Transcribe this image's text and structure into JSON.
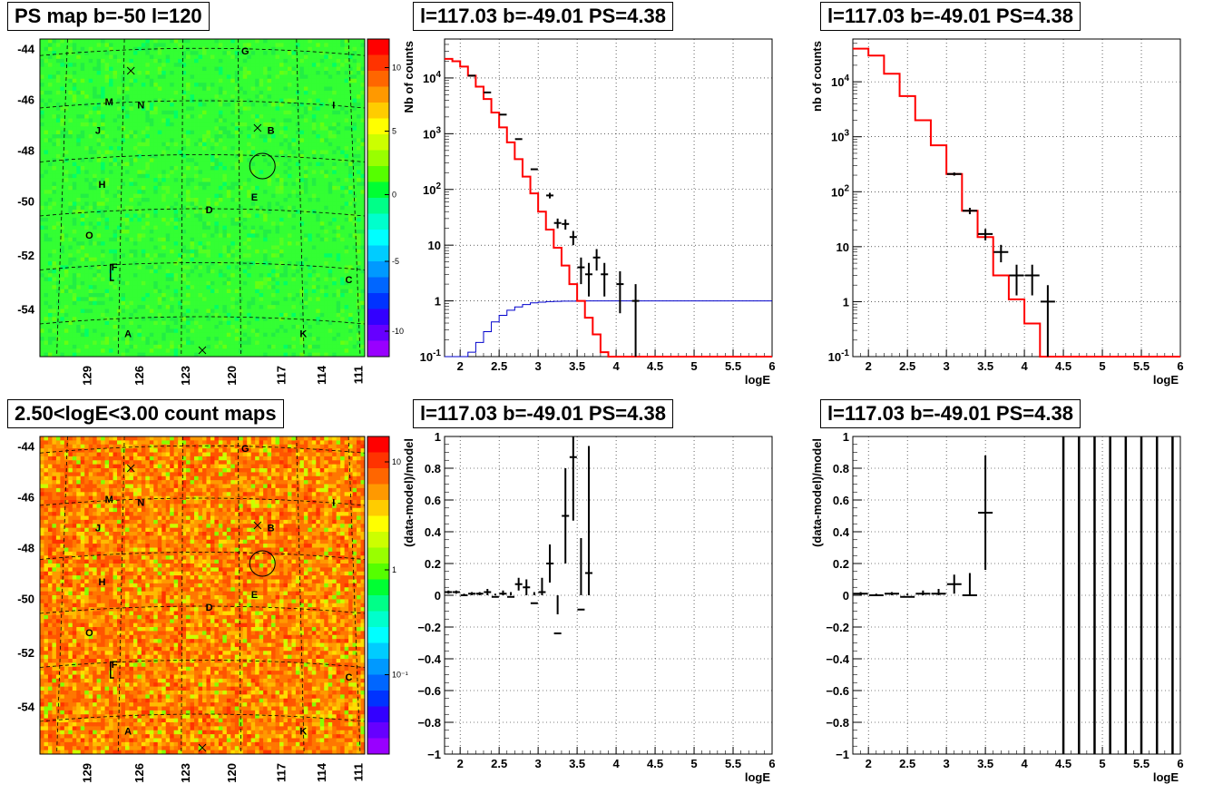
{
  "titles": {
    "map_ps": "PS map b=-50 l=120",
    "spec_top": "l=117.03 b=-49.01 PS=4.38",
    "spec_top_right": "l=117.03 b=-49.01 PS=4.38",
    "map_counts": "2.50<logE<3.00 count maps",
    "resid_left": "l=117.03 b=-49.01 PS=4.38",
    "resid_right": "l=117.03 b=-49.01 PS=4.38"
  },
  "chart_data": [
    {
      "type": "heatmap",
      "panel": "ps_map",
      "lat_ticks": [
        "-44",
        "-46",
        "-48",
        "-50",
        "-52",
        "-54"
      ],
      "lon_ticks": [
        "129",
        "126",
        "123",
        "120",
        "117",
        "114",
        "111"
      ],
      "colorbar_ticks": [
        "10",
        "5",
        "0",
        "-5",
        "-10"
      ],
      "zrange": [
        -12,
        12
      ],
      "source_labels": [
        "G",
        "M",
        "N",
        "I",
        "J",
        "B",
        "H",
        "E",
        "D",
        "O",
        "F",
        "C",
        "A",
        "K"
      ],
      "circle_source": "B/E"
    },
    {
      "type": "line",
      "panel": "spectrum_left",
      "xlabel": "logE",
      "ylabel": "Nb of counts",
      "xlim": [
        1.8,
        6.0
      ],
      "ylim": [
        0.1,
        50000
      ],
      "log_y": true,
      "xticks": [
        "2",
        "2.5",
        "3",
        "3.5",
        "4",
        "4.5",
        "5",
        "5.5",
        "6"
      ],
      "yticks": [
        "10^-1",
        "1",
        "10",
        "10^2",
        "10^3",
        "10^4"
      ],
      "model_step": {
        "edges": [
          1.8,
          1.9,
          2.0,
          2.1,
          2.2,
          2.3,
          2.4,
          2.5,
          2.6,
          2.7,
          2.8,
          2.9,
          3.0,
          3.1,
          3.2,
          3.3,
          3.4,
          3.5,
          3.6,
          3.7,
          3.8,
          3.9,
          4.0,
          4.1,
          4.2,
          6.0
        ],
        "values": [
          22000,
          20000,
          16000,
          11000,
          7000,
          4200,
          2400,
          1300,
          700,
          350,
          170,
          85,
          40,
          19,
          9,
          4.3,
          2.0,
          1.0,
          0.5,
          0.25,
          0.12,
          0.1,
          0.1,
          0.1,
          0.1
        ]
      },
      "efficiency_step": {
        "edges": [
          1.8,
          2.0,
          2.1,
          2.2,
          2.3,
          2.4,
          2.5,
          2.6,
          2.7,
          2.8,
          2.9,
          3.0,
          3.1,
          3.2,
          3.3,
          3.5,
          6.0
        ],
        "values": [
          0.08,
          0.1,
          0.12,
          0.18,
          0.28,
          0.42,
          0.55,
          0.68,
          0.78,
          0.86,
          0.92,
          0.95,
          0.97,
          0.98,
          0.99,
          1.0
        ]
      },
      "data_points": [
        {
          "x": 2.15,
          "y": 11000,
          "err": 0
        },
        {
          "x": 2.35,
          "y": 5500,
          "err": 0
        },
        {
          "x": 2.55,
          "y": 2200,
          "err": 0
        },
        {
          "x": 2.75,
          "y": 800,
          "err": 0
        },
        {
          "x": 2.95,
          "y": 230,
          "err": 0
        },
        {
          "x": 3.15,
          "y": 78,
          "err": 9
        },
        {
          "x": 3.25,
          "y": 25,
          "err": 5
        },
        {
          "x": 3.35,
          "y": 24,
          "err": 5
        },
        {
          "x": 3.45,
          "y": 14,
          "err": 4
        },
        {
          "x": 3.55,
          "y": 4,
          "err": 2
        },
        {
          "x": 3.65,
          "y": 3,
          "err": 1.8
        },
        {
          "x": 3.75,
          "y": 6,
          "err": 2.5
        },
        {
          "x": 3.85,
          "y": 3,
          "err": 1.8
        },
        {
          "x": 4.05,
          "y": 2,
          "err": 1.4
        },
        {
          "x": 4.25,
          "y": 1,
          "err": 1
        }
      ]
    },
    {
      "type": "line",
      "panel": "spectrum_right",
      "xlabel": "logE",
      "ylabel": "nb of counts",
      "xlim": [
        1.8,
        6.0
      ],
      "ylim": [
        0.1,
        60000
      ],
      "log_y": true,
      "xticks": [
        "2",
        "2.5",
        "3",
        "3.5",
        "4",
        "4.5",
        "5",
        "5.5",
        "6"
      ],
      "yticks": [
        "10^-1",
        "1",
        "10",
        "10^2",
        "10^3",
        "10^4"
      ],
      "model_step": {
        "edges": [
          1.8,
          2.0,
          2.2,
          2.4,
          2.6,
          2.8,
          3.0,
          3.2,
          3.4,
          3.6,
          3.8,
          4.0,
          4.2,
          6.0
        ],
        "values": [
          40000,
          30000,
          14000,
          5500,
          2000,
          700,
          210,
          45,
          15,
          3,
          1.1,
          0.4,
          0.1
        ]
      },
      "data_points": [
        {
          "x": 3.1,
          "y": 210,
          "err": 14
        },
        {
          "x": 3.3,
          "y": 45,
          "err": 6
        },
        {
          "x": 3.5,
          "y": 17,
          "err": 4
        },
        {
          "x": 3.7,
          "y": 8,
          "err": 2.8
        },
        {
          "x": 3.9,
          "y": 3,
          "err": 1.7
        },
        {
          "x": 4.1,
          "y": 3,
          "err": 1.7
        },
        {
          "x": 4.3,
          "y": 1,
          "err": 1
        }
      ]
    },
    {
      "type": "scatter",
      "panel": "residual_left",
      "xlabel": "logE",
      "ylabel": "(data-model)/model",
      "xlim": [
        1.8,
        6.0
      ],
      "ylim": [
        -1,
        1
      ],
      "xticks": [
        "2",
        "2.5",
        "3",
        "3.5",
        "4",
        "4.5",
        "5",
        "5.5",
        "6"
      ],
      "yticks": [
        "-1",
        "-0.8",
        "-0.6",
        "-0.4",
        "-0.2",
        "0",
        "0.2",
        "0.4",
        "0.6",
        "0.8",
        "1"
      ],
      "data_points": [
        {
          "x": 1.85,
          "y": 0.02,
          "err": 0.01
        },
        {
          "x": 1.95,
          "y": 0.02,
          "err": 0.01
        },
        {
          "x": 2.05,
          "y": 0.0,
          "err": 0.01
        },
        {
          "x": 2.15,
          "y": 0.01,
          "err": 0.01
        },
        {
          "x": 2.25,
          "y": 0.01,
          "err": 0.01
        },
        {
          "x": 2.35,
          "y": 0.02,
          "err": 0.02
        },
        {
          "x": 2.45,
          "y": -0.01,
          "err": 0.02
        },
        {
          "x": 2.55,
          "y": 0.01,
          "err": 0.02
        },
        {
          "x": 2.65,
          "y": -0.01,
          "err": 0.03
        },
        {
          "x": 2.75,
          "y": 0.07,
          "err": 0.04
        },
        {
          "x": 2.85,
          "y": 0.05,
          "err": 0.05
        },
        {
          "x": 2.95,
          "y": -0.05,
          "err": 0.07
        },
        {
          "x": 3.05,
          "y": 0.02,
          "err": 0.09
        },
        {
          "x": 3.15,
          "y": 0.2,
          "err": 0.12
        },
        {
          "x": 3.25,
          "y": -0.24,
          "err": 0.12
        },
        {
          "x": 3.35,
          "y": 0.5,
          "err": 0.3
        },
        {
          "x": 3.45,
          "y": 0.87,
          "err": 0.4
        },
        {
          "x": 3.55,
          "y": -0.09,
          "err": 0.45
        },
        {
          "x": 3.65,
          "y": 0.14,
          "err": 0.8
        }
      ]
    },
    {
      "type": "scatter",
      "panel": "residual_right",
      "xlabel": "logE",
      "ylabel": "(data-model)/model",
      "xlim": [
        1.8,
        6.0
      ],
      "ylim": [
        -1,
        1
      ],
      "xticks": [
        "2",
        "2.5",
        "3",
        "3.5",
        "4",
        "4.5",
        "5",
        "5.5",
        "6"
      ],
      "yticks": [
        "-1",
        "-0.8",
        "-0.6",
        "-0.4",
        "-0.2",
        "0",
        "0.2",
        "0.4",
        "0.6",
        "0.8",
        "1"
      ],
      "data_points": [
        {
          "x": 1.9,
          "y": 0.01,
          "err": 0.01
        },
        {
          "x": 2.1,
          "y": 0.0,
          "err": 0.01
        },
        {
          "x": 2.3,
          "y": 0.01,
          "err": 0.01
        },
        {
          "x": 2.5,
          "y": -0.01,
          "err": 0.02
        },
        {
          "x": 2.7,
          "y": 0.01,
          "err": 0.02
        },
        {
          "x": 2.9,
          "y": 0.01,
          "err": 0.03
        },
        {
          "x": 3.1,
          "y": 0.07,
          "err": 0.06
        },
        {
          "x": 3.3,
          "y": 0.0,
          "err": 0.14
        },
        {
          "x": 3.5,
          "y": 0.52,
          "err": 0.36
        }
      ],
      "full_range_bars_x": [
        4.5,
        4.7,
        4.9,
        5.1,
        5.3,
        5.5,
        5.7,
        5.9
      ]
    }
  ],
  "colors": {
    "model": "#ff0000",
    "efficiency": "#0000cc",
    "data": "#000000",
    "grid": "#000000"
  }
}
